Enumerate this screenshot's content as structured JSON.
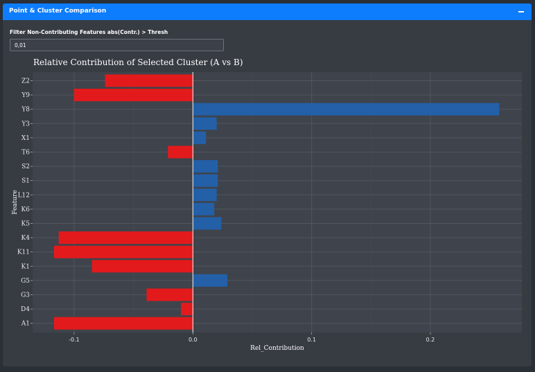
{
  "panel": {
    "title": "Point & Cluster Comparison",
    "collapse_icon": "minus-icon"
  },
  "filter": {
    "label": "Filter Non-Contributing Features abs(Contr.) > Thresh",
    "value": "0,01"
  },
  "chart_data": {
    "type": "bar",
    "orientation": "horizontal",
    "title": "Relative Contribution of Selected Cluster (A vs B)",
    "xlabel": "Rel_Contribution",
    "ylabel": "Feature",
    "xlim": [
      -0.135,
      0.277
    ],
    "xticks": [
      -0.1,
      0.0,
      0.1,
      0.2
    ],
    "xtick_labels": [
      "-0.1",
      "0.0",
      "0.1",
      "0.2"
    ],
    "grid": true,
    "legend": "none",
    "colors": {
      "negative": "#e31a1c",
      "positive": "#2360a8"
    },
    "categories": [
      "Z2",
      "Y9",
      "Y8",
      "Y3",
      "X1",
      "T6",
      "S2",
      "S1",
      "L12",
      "K6",
      "K5",
      "K4",
      "K11",
      "K1",
      "G5",
      "G3",
      "D4",
      "A1"
    ],
    "values": [
      -0.074,
      -0.1,
      0.258,
      0.02,
      0.011,
      -0.021,
      0.021,
      0.021,
      0.02,
      0.018,
      0.024,
      -0.113,
      -0.117,
      -0.085,
      0.029,
      -0.039,
      -0.01,
      -0.117
    ]
  }
}
